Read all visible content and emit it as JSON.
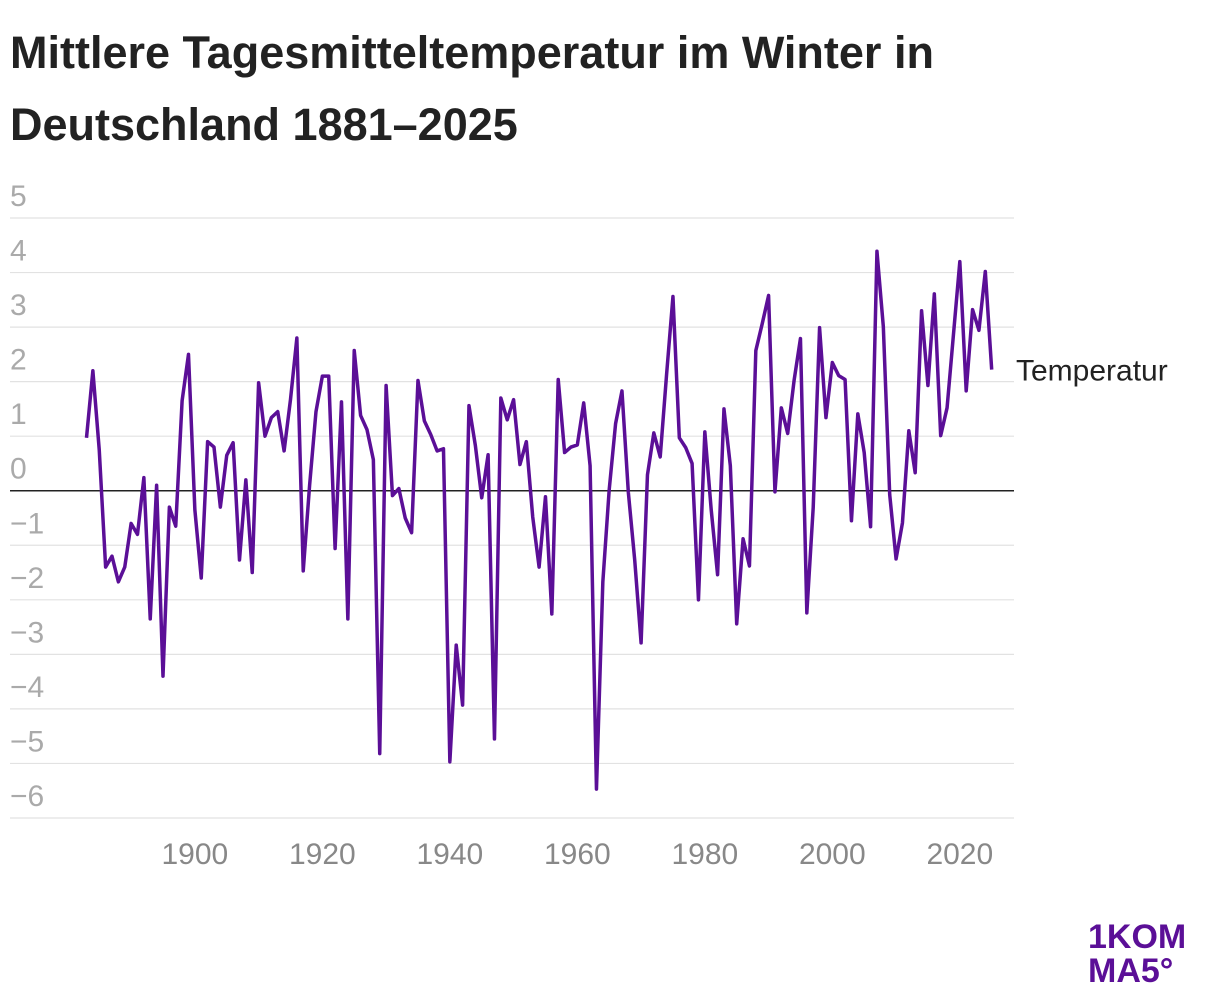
{
  "chart_data": {
    "type": "line",
    "title_lines": [
      "Mittlere Tagesmitteltemperatur im Winter in",
      "Deutschland 1881–2025"
    ],
    "logo_lines": [
      "1KOM",
      "MA5°"
    ],
    "x": [
      1883,
      1884,
      1885,
      1886,
      1887,
      1888,
      1889,
      1890,
      1891,
      1892,
      1893,
      1894,
      1895,
      1896,
      1897,
      1898,
      1899,
      1900,
      1901,
      1902,
      1903,
      1904,
      1905,
      1906,
      1907,
      1908,
      1909,
      1910,
      1911,
      1912,
      1913,
      1914,
      1915,
      1916,
      1917,
      1918,
      1919,
      1920,
      1921,
      1922,
      1923,
      1924,
      1925,
      1926,
      1927,
      1928,
      1929,
      1930,
      1931,
      1932,
      1933,
      1934,
      1935,
      1936,
      1937,
      1938,
      1939,
      1940,
      1941,
      1942,
      1943,
      1944,
      1945,
      1946,
      1947,
      1948,
      1949,
      1950,
      1951,
      1952,
      1953,
      1954,
      1955,
      1956,
      1957,
      1958,
      1959,
      1960,
      1961,
      1962,
      1963,
      1964,
      1965,
      1966,
      1967,
      1968,
      1969,
      1970,
      1971,
      1972,
      1973,
      1974,
      1975,
      1976,
      1977,
      1978,
      1979,
      1980,
      1981,
      1982,
      1983,
      1984,
      1985,
      1986,
      1987,
      1988,
      1989,
      1990,
      1991,
      1992,
      1993,
      1994,
      1995,
      1996,
      1997,
      1998,
      1999,
      2000,
      2001,
      2002,
      2003,
      2004,
      2005,
      2006,
      2007,
      2008,
      2009,
      2010,
      2011,
      2012,
      2013,
      2014,
      2015,
      2016,
      2017,
      2018,
      2019,
      2020,
      2021,
      2022,
      2023,
      2024,
      2025
    ],
    "series": [
      {
        "name": "Temperatur",
        "color": "#5b0f97",
        "values": [
          0.97,
          2.2,
          0.75,
          -1.4,
          -1.2,
          -1.67,
          -1.4,
          -0.6,
          -0.8,
          0.24,
          -2.35,
          0.1,
          -3.4,
          -0.3,
          -0.65,
          1.65,
          2.5,
          -0.35,
          -1.6,
          0.9,
          0.8,
          -0.3,
          0.65,
          0.88,
          -1.27,
          0.2,
          -1.5,
          1.98,
          1.0,
          1.34,
          1.45,
          0.73,
          1.67,
          2.8,
          -1.47,
          0.1,
          1.45,
          2.1,
          2.1,
          -1.06,
          1.63,
          -2.35,
          2.57,
          1.38,
          1.12,
          0.57,
          -4.82,
          1.93,
          -0.09,
          0.04,
          -0.5,
          -0.77,
          2.02,
          1.28,
          1.03,
          0.73,
          0.77,
          -4.97,
          -2.83,
          -3.93,
          1.56,
          0.83,
          -0.13,
          0.66,
          -4.55,
          1.7,
          1.3,
          1.67,
          0.48,
          0.9,
          -0.48,
          -1.4,
          -0.11,
          -2.26,
          2.04,
          0.7,
          0.8,
          0.84,
          1.61,
          0.46,
          -5.47,
          -1.67,
          0.02,
          1.23,
          1.83,
          -0.03,
          -1.27,
          -2.79,
          0.29,
          1.06,
          0.62,
          2.13,
          3.56,
          0.97,
          0.79,
          0.5,
          -2.0,
          1.08,
          -0.35,
          -1.54,
          1.5,
          0.46,
          -2.44,
          -0.88,
          -1.38,
          2.57,
          3.06,
          3.58,
          -0.02,
          1.52,
          1.05,
          2.02,
          2.79,
          -2.24,
          -0.31,
          2.99,
          1.34,
          2.35,
          2.11,
          2.04,
          -0.55,
          1.41,
          0.7,
          -0.66,
          4.39,
          3.01,
          -0.07,
          -1.25,
          -0.59,
          1.1,
          0.33,
          3.3,
          1.93,
          3.61,
          1.01,
          1.52,
          2.86,
          4.2,
          1.83,
          3.32,
          2.94,
          4.02,
          2.22
        ]
      }
    ],
    "xlim": [
      1871,
      2028.5
    ],
    "xticks": [
      1900,
      1920,
      1940,
      1960,
      1980,
      2000,
      2020
    ],
    "ylim": [
      -6,
      5
    ],
    "yticks": [
      5,
      4,
      3,
      2,
      1,
      0,
      {
        "value": -1,
        "label": "−1"
      },
      {
        "value": -2,
        "label": "−2"
      },
      {
        "value": -3,
        "label": "−3"
      },
      {
        "value": -4,
        "label": "−4"
      },
      {
        "value": -5,
        "label": "−5"
      },
      {
        "value": -6,
        "label": "−6"
      }
    ],
    "grid": true,
    "zero_line": true
  }
}
